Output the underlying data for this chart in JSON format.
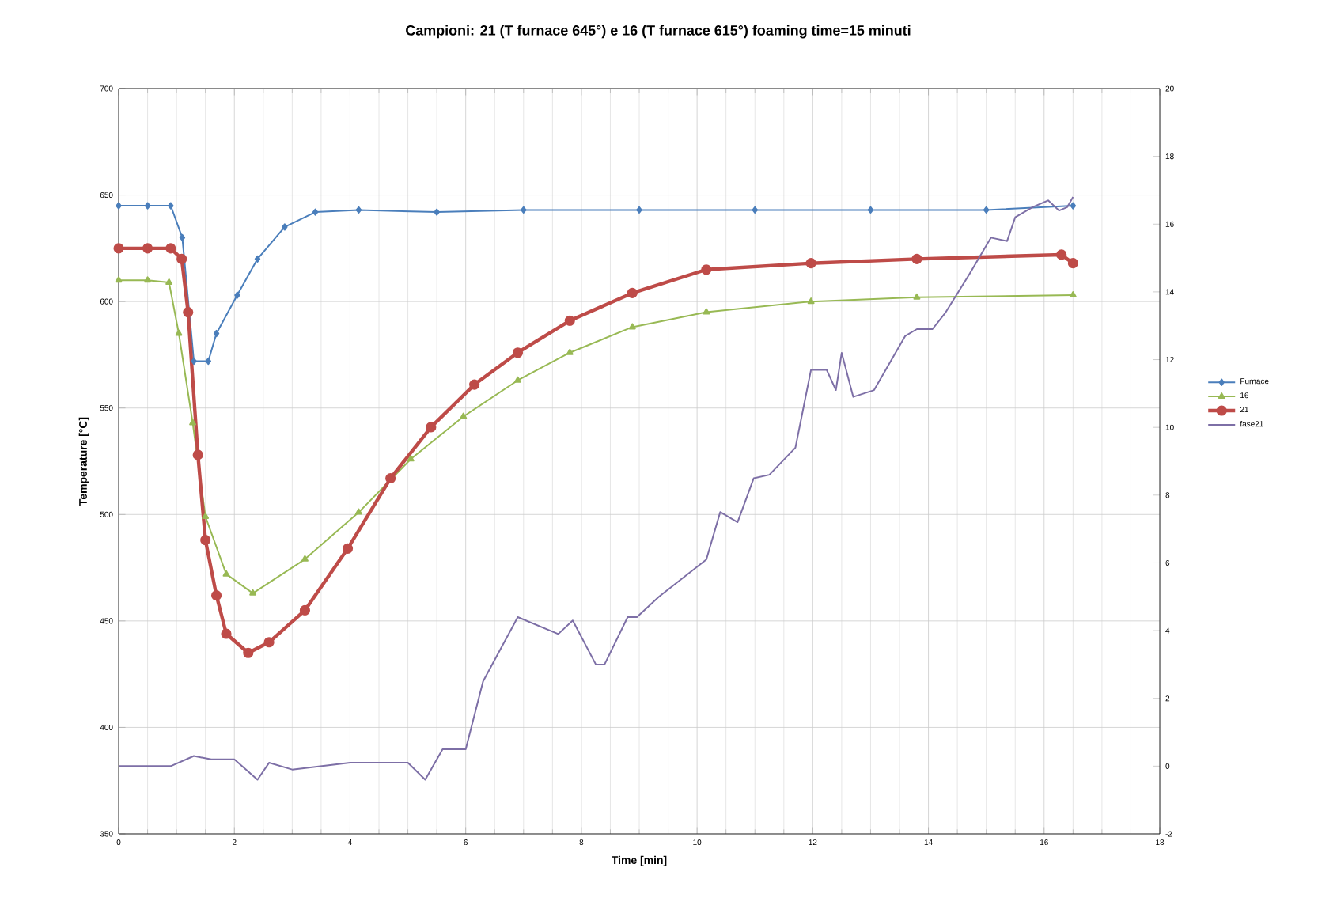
{
  "chart_data": {
    "type": "line",
    "title": "Campioni: 21 (T furnace 645°) e 16 (T furnace 615°) foaming time=15 minuti",
    "xlabel": "Time [min]",
    "ylabel": "Temperature [°C]",
    "xlim": [
      0,
      18
    ],
    "xticks": [
      0,
      2,
      4,
      6,
      8,
      10,
      12,
      14,
      16,
      18
    ],
    "ylim": [
      350,
      700
    ],
    "yticks": [
      350,
      400,
      450,
      500,
      550,
      600,
      650,
      700
    ],
    "y2lim": [
      -2,
      20
    ],
    "y2ticks": [
      -2,
      0,
      2,
      4,
      6,
      8,
      10,
      12,
      14,
      16,
      18,
      20
    ],
    "grid": true,
    "legend": "right",
    "series": [
      {
        "name": "Furnace",
        "color": "#4a7ebb",
        "marker": "diamond",
        "x": [
          0,
          0.5,
          0.9,
          1.1,
          1.3,
          1.55,
          1.69,
          2.05,
          2.4,
          2.87,
          3.4,
          4.15,
          5.5,
          7.0,
          9.0,
          11.0,
          13.0,
          15.0,
          16.5
        ],
        "values": [
          645,
          645,
          645,
          630,
          572,
          572,
          585,
          603,
          620,
          635,
          642,
          643,
          642,
          643,
          643,
          643,
          643,
          643,
          645
        ]
      },
      {
        "name": "16",
        "color": "#98b954",
        "marker": "triangle",
        "x": [
          0,
          0.5,
          0.87,
          1.04,
          1.28,
          1.5,
          1.86,
          2.32,
          3.22,
          4.15,
          5.05,
          5.96,
          6.9,
          7.8,
          8.88,
          10.16,
          11.97,
          13.8,
          16.5
        ],
        "values": [
          610,
          610,
          609,
          585,
          543,
          499,
          472,
          463,
          479,
          501,
          526,
          546,
          563,
          576,
          588,
          595,
          600,
          602,
          603
        ]
      },
      {
        "name": "21",
        "color": "#be4b48",
        "marker": "circle",
        "x": [
          0,
          0.5,
          0.9,
          1.09,
          1.2,
          1.37,
          1.5,
          1.69,
          1.86,
          2.24,
          2.6,
          3.22,
          3.96,
          4.7,
          5.4,
          6.15,
          6.9,
          7.8,
          8.88,
          10.16,
          11.97,
          13.8,
          16.3,
          16.5
        ],
        "values": [
          625,
          625,
          625,
          620,
          595,
          528,
          488,
          462,
          444,
          435,
          440,
          455,
          484,
          517,
          541,
          561,
          576,
          591,
          604,
          615,
          618,
          620,
          622,
          618
        ]
      },
      {
        "name": "fase21",
        "color": "#7d6fa6",
        "marker": "none",
        "axis": "y2",
        "x": [
          0,
          0.9,
          1.3,
          1.6,
          2.0,
          2.4,
          2.6,
          3.0,
          4.0,
          5.0,
          5.3,
          5.6,
          6.0,
          6.3,
          6.9,
          7.6,
          7.85,
          8.25,
          8.4,
          8.8,
          8.96,
          9.34,
          10.16,
          10.4,
          10.7,
          10.98,
          11.25,
          11.7,
          11.97,
          12.24,
          12.4,
          12.5,
          12.7,
          13.06,
          13.6,
          13.8,
          14.07,
          14.3,
          14.7,
          15.08,
          15.36,
          15.5,
          15.8,
          16.07,
          16.26,
          16.4,
          16.5
        ],
        "values": [
          0,
          0,
          0.3,
          0.2,
          0.2,
          -0.4,
          0.1,
          -0.1,
          0.1,
          0.1,
          -0.4,
          0.5,
          0.5,
          2.5,
          4.4,
          3.9,
          4.3,
          3.0,
          3.0,
          4.4,
          4.4,
          5.0,
          6.1,
          7.5,
          7.2,
          8.5,
          8.6,
          9.4,
          11.7,
          11.7,
          11.1,
          12.2,
          10.9,
          11.1,
          12.7,
          12.9,
          12.9,
          13.4,
          14.5,
          15.6,
          15.5,
          16.2,
          16.5,
          16.7,
          16.4,
          16.5,
          16.8
        ]
      }
    ]
  }
}
